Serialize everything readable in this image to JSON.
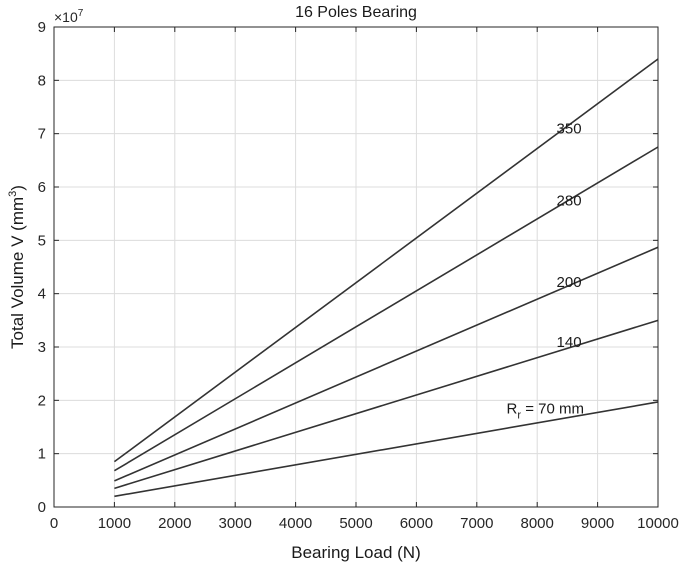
{
  "chart_data": {
    "type": "line",
    "title": "16 Poles Bearing",
    "xlabel": "Bearing Load (N)",
    "ylabel": {
      "prefix": "Total Volume V (mm",
      "sup": "3",
      "suffix": ")"
    },
    "y_multiplier": {
      "base": "×10",
      "exp": "7"
    },
    "xlim": [
      0,
      10000
    ],
    "ylim": [
      0,
      9
    ],
    "x_ticks": [
      "0",
      "1000",
      "2000",
      "3000",
      "4000",
      "5000",
      "6000",
      "7000",
      "8000",
      "9000",
      "10000"
    ],
    "y_ticks": [
      "0",
      "1",
      "2",
      "3",
      "4",
      "5",
      "6",
      "7",
      "8",
      "9"
    ],
    "grid": true,
    "x": [
      1000,
      10000
    ],
    "series": [
      {
        "values": [
          0.85,
          8.4
        ],
        "label": "350"
      },
      {
        "values": [
          0.68,
          6.75
        ],
        "label": "280"
      },
      {
        "values": [
          0.49,
          4.87
        ],
        "label": "200"
      },
      {
        "values": [
          0.35,
          3.5
        ],
        "label": "140"
      },
      {
        "values": [
          0.2,
          1.97
        ],
        "label_main": "R",
        "label_sub": "r",
        "label_rest": " = 70 mm"
      }
    ],
    "line_color": "#333333"
  }
}
